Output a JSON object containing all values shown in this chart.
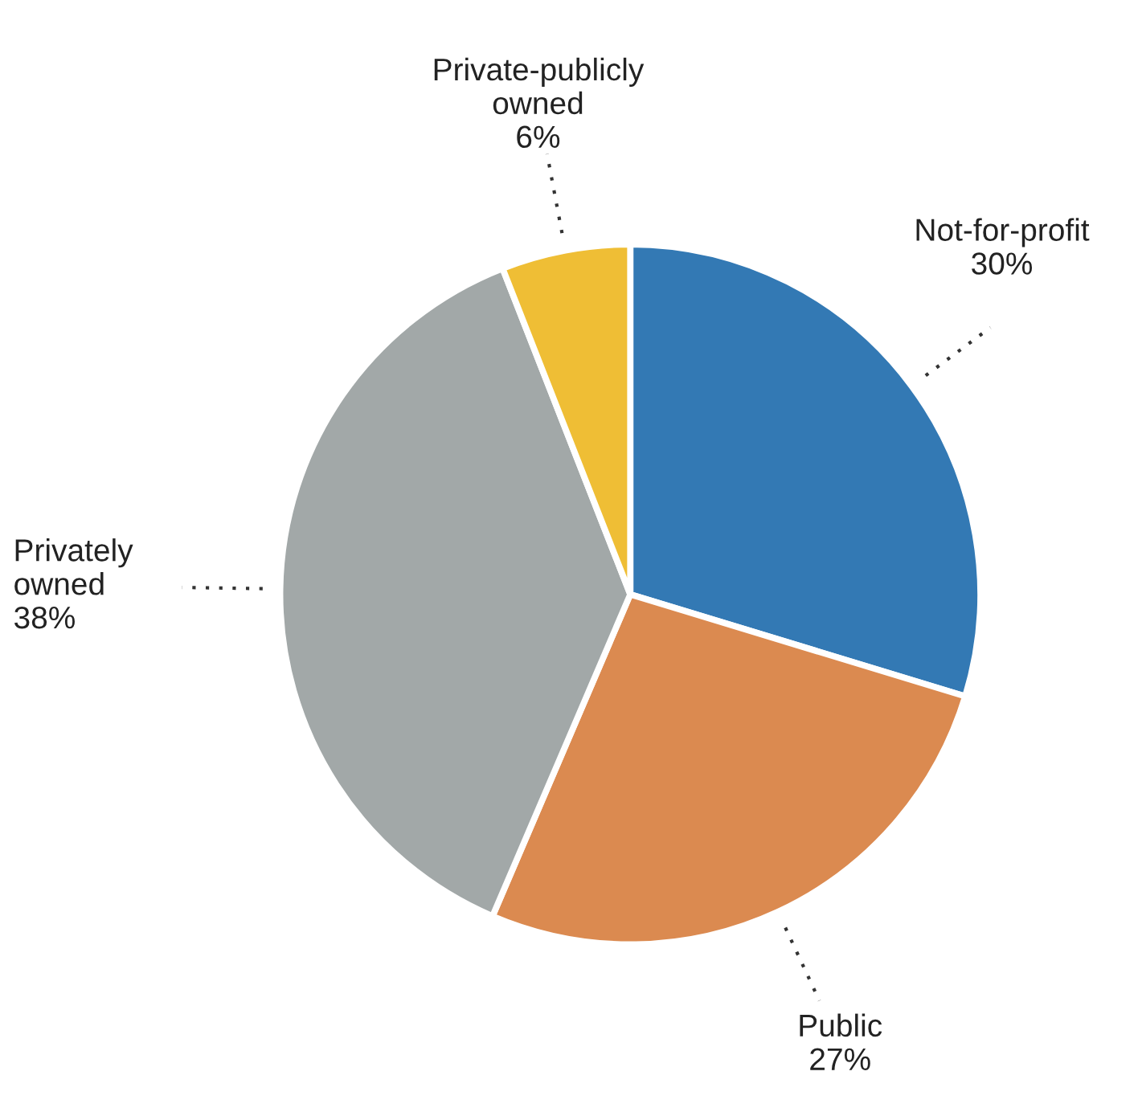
{
  "chart_data": {
    "type": "pie",
    "categories": [
      "Not-for-profit",
      "Public",
      "Privately\nowned",
      "Private-publicly\nowned"
    ],
    "values": [
      30,
      27,
      38,
      6
    ],
    "value_labels": [
      "30%",
      "27%",
      "38%",
      "6%"
    ],
    "colors": [
      "#3379b4",
      "#db8a50",
      "#a2a8a8",
      "#efbe35"
    ]
  }
}
